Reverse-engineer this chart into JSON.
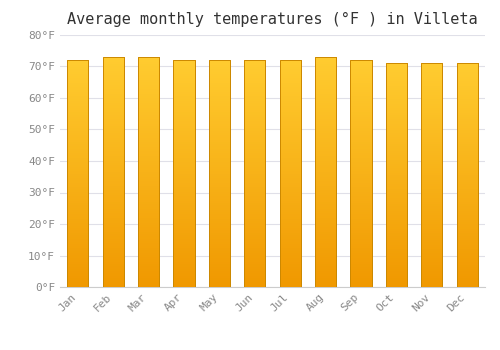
{
  "title": "Average monthly temperatures (°F ) in Villeta",
  "months": [
    "Jan",
    "Feb",
    "Mar",
    "Apr",
    "May",
    "Jun",
    "Jul",
    "Aug",
    "Sep",
    "Oct",
    "Nov",
    "Dec"
  ],
  "values": [
    72,
    73,
    73,
    72,
    72,
    72,
    72,
    73,
    72,
    71,
    71,
    71
  ],
  "ylim": [
    0,
    80
  ],
  "yticks": [
    0,
    10,
    20,
    30,
    40,
    50,
    60,
    70,
    80
  ],
  "ytick_labels": [
    "0°F",
    "10°F",
    "20°F",
    "30°F",
    "40°F",
    "50°F",
    "60°F",
    "70°F",
    "80°F"
  ],
  "bar_color_bright": "#FFC830",
  "bar_color_dark": "#F0A000",
  "bar_edge_color": "#CC8800",
  "background_color": "#FFFFFF",
  "grid_color": "#E0E0E8",
  "title_fontsize": 11,
  "tick_fontsize": 8,
  "font_family": "monospace",
  "bar_width": 0.6
}
